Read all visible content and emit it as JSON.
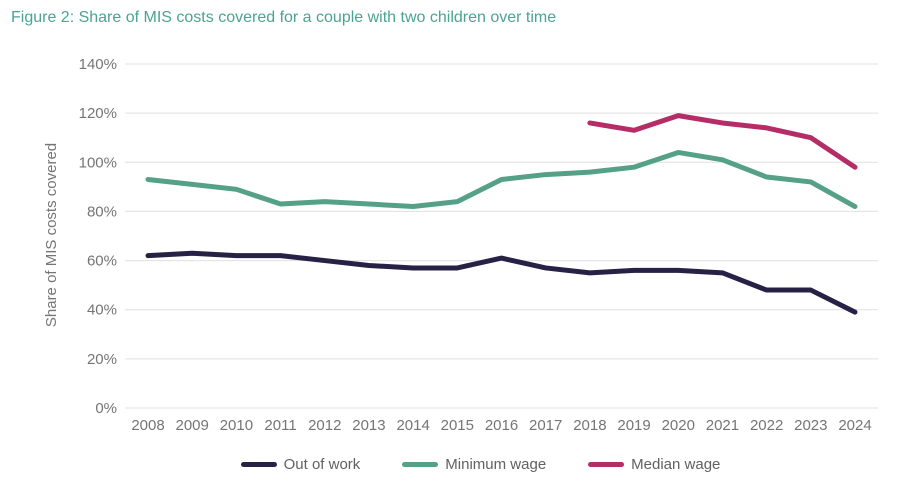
{
  "title": "Figure 2: Share of MIS costs covered for a couple with two children over time",
  "colors": {
    "title_text": "#4ba394",
    "grid_line": "#e0e0e0",
    "axis_text": "#757575",
    "legend_text": "#616161",
    "out_of_work": "#272145",
    "minimum_wage": "#55a187",
    "median_wage": "#b42d66",
    "background": "#ffffff"
  },
  "chart_data": {
    "type": "line",
    "title": "Figure 2: Share of MIS costs covered for a couple with two children over time",
    "xlabel": "",
    "ylabel": "Share of MIS costs covered",
    "ylim": [
      0,
      140
    ],
    "y_tick_step": 20,
    "y_ticks": [
      "0%",
      "20%",
      "40%",
      "60%",
      "80%",
      "100%",
      "120%",
      "140%"
    ],
    "grid": true,
    "legend_position": "bottom",
    "categories": [
      "2008",
      "2009",
      "2010",
      "2011",
      "2012",
      "2013",
      "2014",
      "2015",
      "2016",
      "2017",
      "2018",
      "2019",
      "2020",
      "2021",
      "2022",
      "2023",
      "2024"
    ],
    "series": [
      {
        "name": "Out of work",
        "color": "#272145",
        "values": [
          62,
          63,
          62,
          62,
          60,
          58,
          57,
          57,
          61,
          57,
          55,
          56,
          56,
          55,
          48,
          48,
          39
        ]
      },
      {
        "name": "Minimum wage",
        "color": "#55a187",
        "values": [
          93,
          91,
          89,
          83,
          84,
          83,
          82,
          84,
          93,
          95,
          96,
          98,
          104,
          101,
          94,
          92,
          82
        ]
      },
      {
        "name": "Median wage",
        "color": "#b42d66",
        "values": [
          null,
          null,
          null,
          null,
          null,
          null,
          null,
          null,
          null,
          null,
          116,
          113,
          119,
          116,
          114,
          110,
          98
        ]
      }
    ]
  }
}
